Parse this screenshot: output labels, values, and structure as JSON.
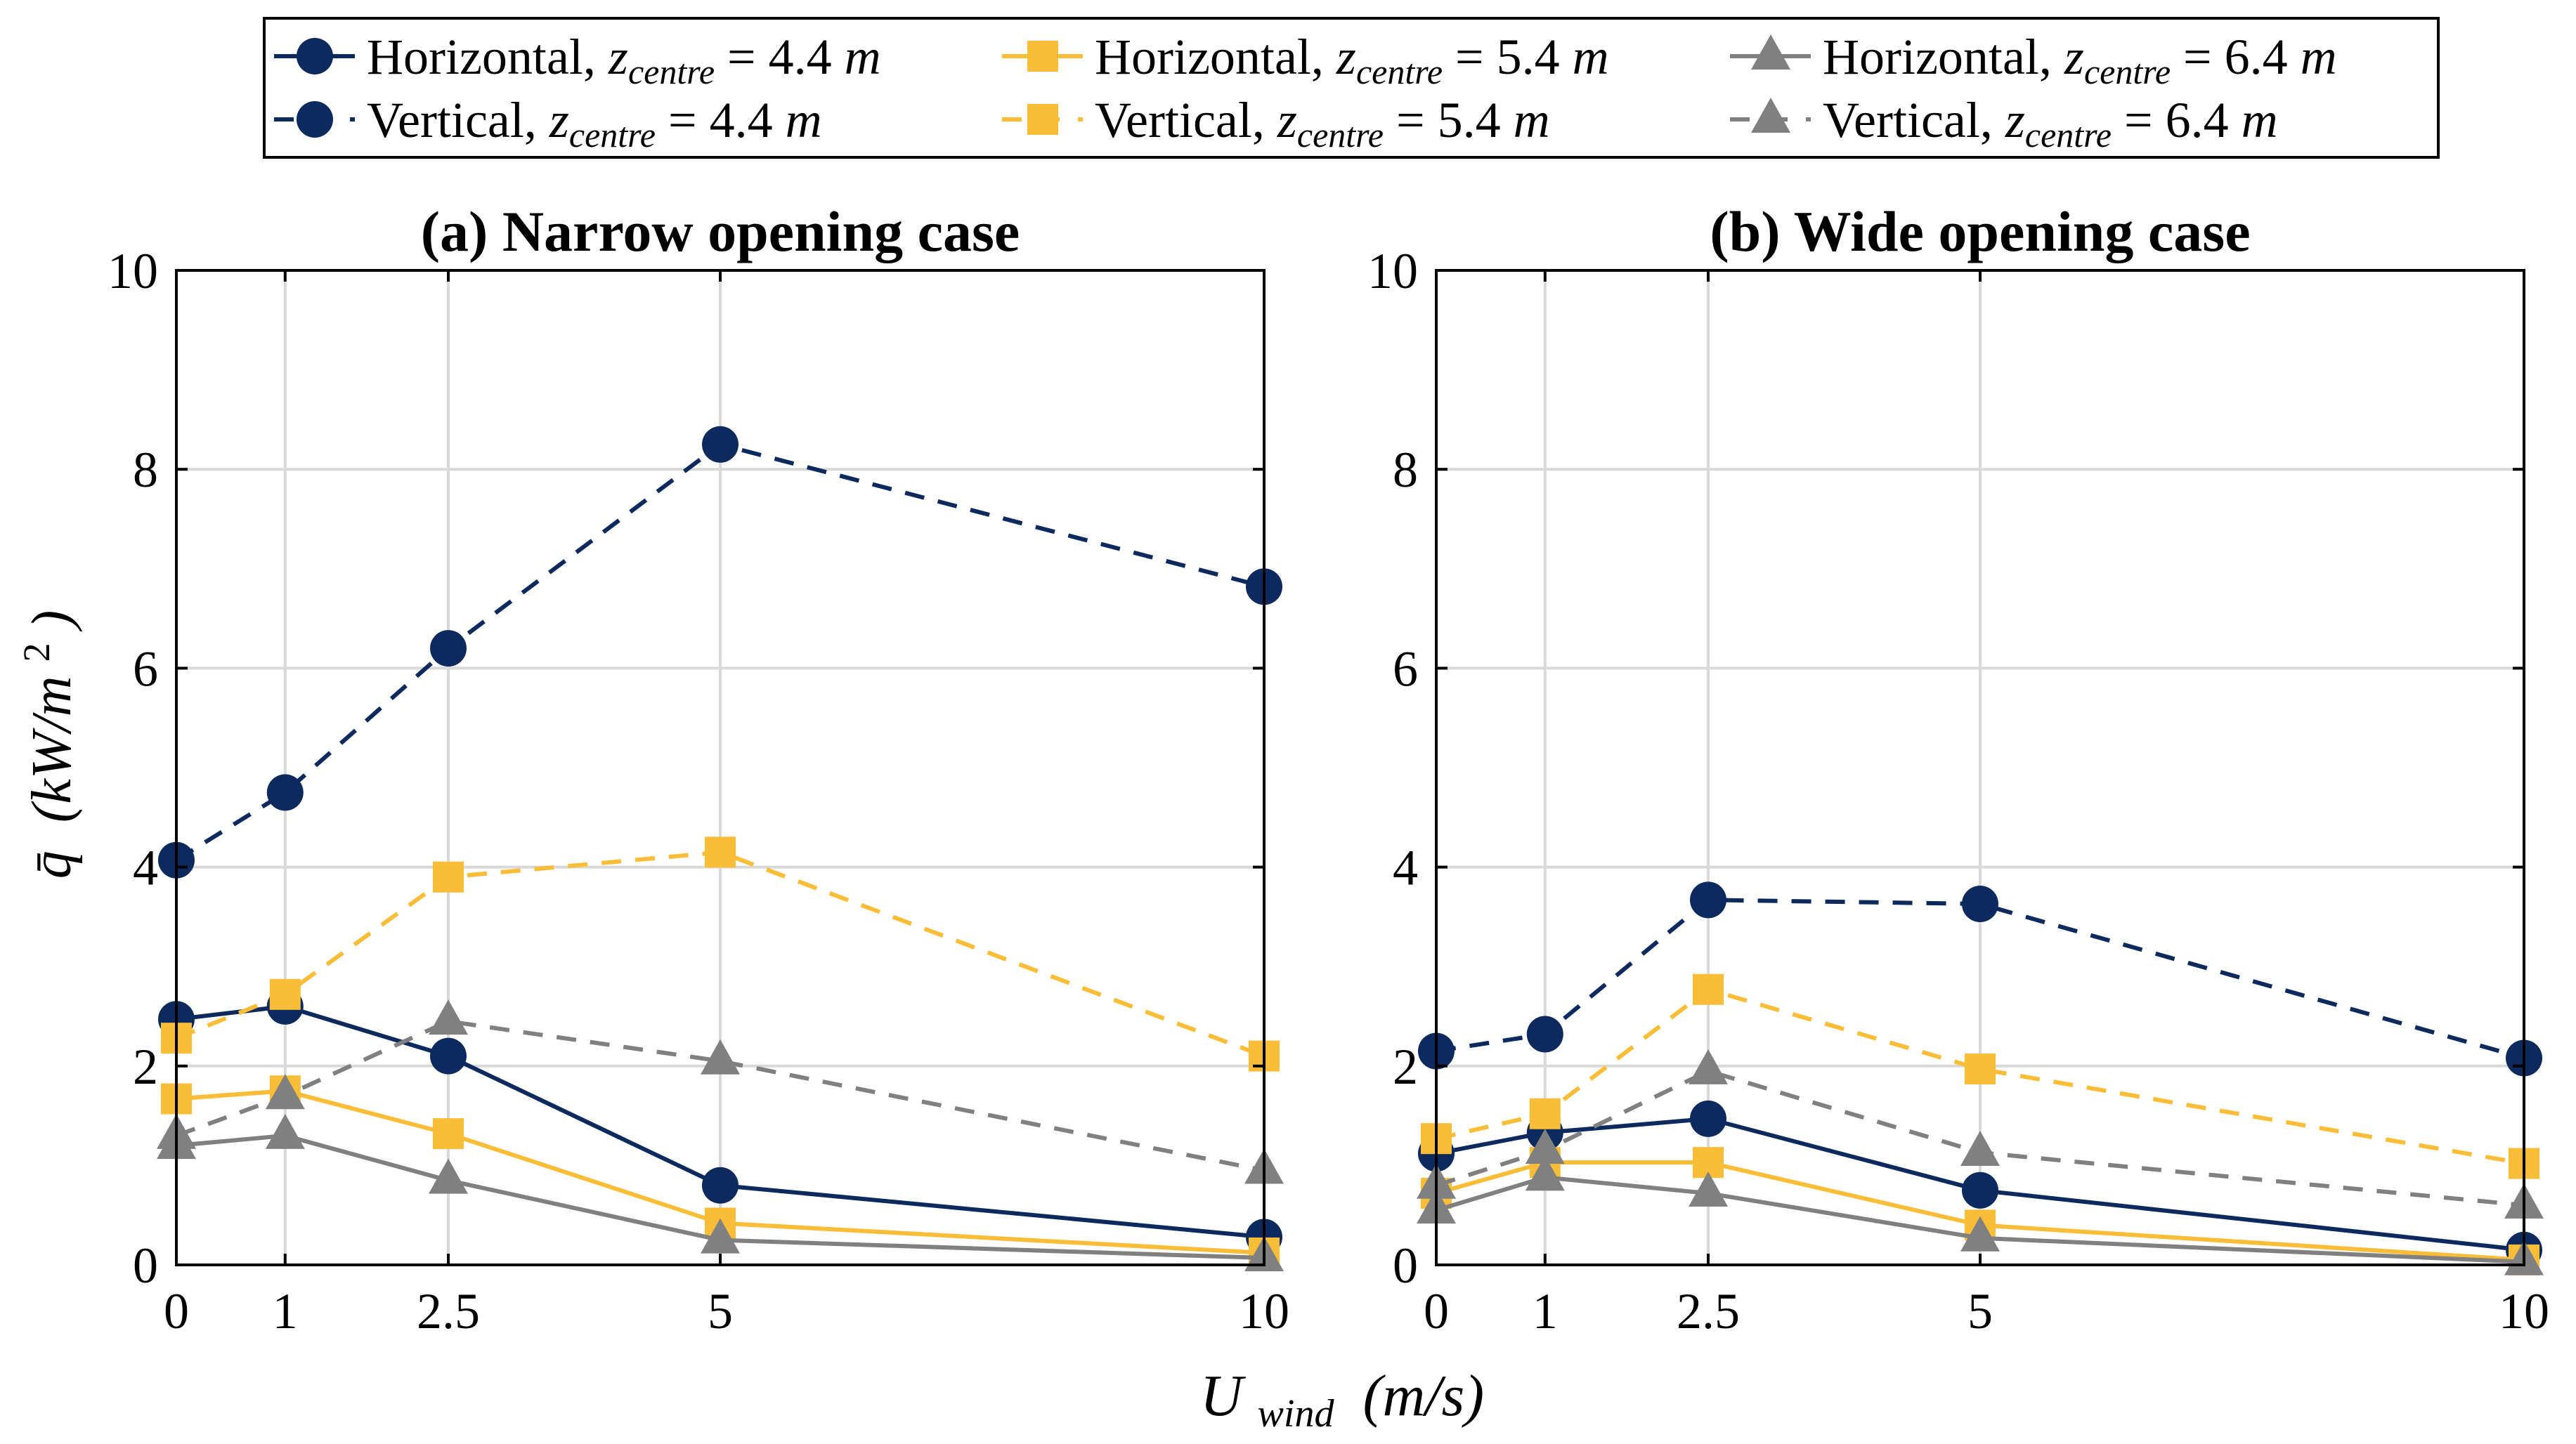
{
  "legend": {
    "entries": [
      {
        "orientation": "Horizontal,",
        "z_value": "4.4",
        "color_key": "navy",
        "style": "solid",
        "marker": "circle"
      },
      {
        "orientation": "Horizontal,",
        "z_value": "5.4",
        "color_key": "yellow",
        "style": "solid",
        "marker": "square"
      },
      {
        "orientation": "Horizontal,",
        "z_value": "6.4",
        "color_key": "gray",
        "style": "solid",
        "marker": "triangle"
      },
      {
        "orientation": "Vertical,",
        "z_value": "4.4",
        "color_key": "navy",
        "style": "dashed",
        "marker": "circle"
      },
      {
        "orientation": "Vertical,",
        "z_value": "5.4",
        "color_key": "yellow",
        "style": "dashed",
        "marker": "square"
      },
      {
        "orientation": "Vertical,",
        "z_value": "6.4",
        "color_key": "gray",
        "style": "dashed",
        "marker": "triangle"
      }
    ],
    "z_symbol": "z",
    "z_subscript": "centre",
    "equals": "=",
    "unit": "m"
  },
  "colors": {
    "navy": "#0d2a5e",
    "yellow": "#f9bd38",
    "gray": "#808080"
  },
  "axis_labels": {
    "x_main": "U",
    "x_sub": "wind",
    "x_unit": "(m/s)",
    "y_main": "q̄",
    "y_unit_open": "(kW/m",
    "y_unit_sup": "2",
    "y_unit_close": ")"
  },
  "chart_data": [
    {
      "type": "line",
      "title": "(a) Narrow opening case",
      "x": [
        0,
        1,
        2.5,
        5,
        10
      ],
      "x_tick_labels": [
        "0",
        "1",
        "2.5",
        "5",
        "10"
      ],
      "y_ticks": [
        0,
        2,
        4,
        6,
        8,
        10
      ],
      "y_tick_labels": [
        "0",
        "2",
        "4",
        "6",
        "8",
        "10"
      ],
      "ylim": [
        0,
        10
      ],
      "grid": true,
      "series": [
        {
          "name": "Horizontal, z_centre = 4.4 m",
          "color_key": "navy",
          "style": "solid",
          "marker": "circle",
          "values": [
            2.47,
            2.6,
            2.1,
            0.8,
            0.28
          ]
        },
        {
          "name": "Horizontal, z_centre = 5.4 m",
          "color_key": "yellow",
          "style": "solid",
          "marker": "square",
          "values": [
            1.67,
            1.75,
            1.32,
            0.42,
            0.12
          ]
        },
        {
          "name": "Horizontal, z_centre = 6.4 m",
          "color_key": "gray",
          "style": "solid",
          "marker": "triangle",
          "values": [
            1.2,
            1.3,
            0.85,
            0.25,
            0.07
          ]
        },
        {
          "name": "Vertical, z_centre = 4.4 m",
          "color_key": "navy",
          "style": "dashed",
          "marker": "circle",
          "values": [
            4.07,
            4.75,
            6.2,
            8.25,
            6.82
          ]
        },
        {
          "name": "Vertical, z_centre = 5.4 m",
          "color_key": "yellow",
          "style": "dashed",
          "marker": "square",
          "values": [
            2.28,
            2.72,
            3.9,
            4.15,
            2.1
          ]
        },
        {
          "name": "Vertical, z_centre = 6.4 m",
          "color_key": "gray",
          "style": "dashed",
          "marker": "triangle",
          "values": [
            1.3,
            1.7,
            2.45,
            2.05,
            0.95
          ]
        }
      ]
    },
    {
      "type": "line",
      "title": "(b) Wide opening case",
      "x": [
        0,
        1,
        2.5,
        5,
        10
      ],
      "x_tick_labels": [
        "0",
        "1",
        "2.5",
        "5",
        "10"
      ],
      "y_ticks": [
        0,
        2,
        4,
        6,
        8,
        10
      ],
      "y_tick_labels": [
        "0",
        "2",
        "4",
        "6",
        "8",
        "10"
      ],
      "ylim": [
        0,
        10
      ],
      "grid": true,
      "series": [
        {
          "name": "Horizontal, z_centre = 4.4 m",
          "color_key": "navy",
          "style": "solid",
          "marker": "circle",
          "values": [
            1.12,
            1.33,
            1.47,
            0.75,
            0.15
          ]
        },
        {
          "name": "Horizontal, z_centre = 5.4 m",
          "color_key": "yellow",
          "style": "solid",
          "marker": "square",
          "values": [
            0.72,
            1.03,
            1.03,
            0.4,
            0.05
          ]
        },
        {
          "name": "Horizontal, z_centre = 6.4 m",
          "color_key": "gray",
          "style": "solid",
          "marker": "triangle",
          "values": [
            0.55,
            0.88,
            0.72,
            0.27,
            0.03
          ]
        },
        {
          "name": "Vertical, z_centre = 4.4 m",
          "color_key": "navy",
          "style": "dashed",
          "marker": "circle",
          "values": [
            2.15,
            2.32,
            3.67,
            3.63,
            2.08
          ]
        },
        {
          "name": "Vertical, z_centre = 5.4 m",
          "color_key": "yellow",
          "style": "dashed",
          "marker": "square",
          "values": [
            1.27,
            1.52,
            2.77,
            1.97,
            1.02
          ]
        },
        {
          "name": "Vertical, z_centre = 6.4 m",
          "color_key": "gray",
          "style": "dashed",
          "marker": "triangle",
          "values": [
            0.8,
            1.15,
            1.95,
            1.13,
            0.6
          ]
        }
      ]
    }
  ]
}
